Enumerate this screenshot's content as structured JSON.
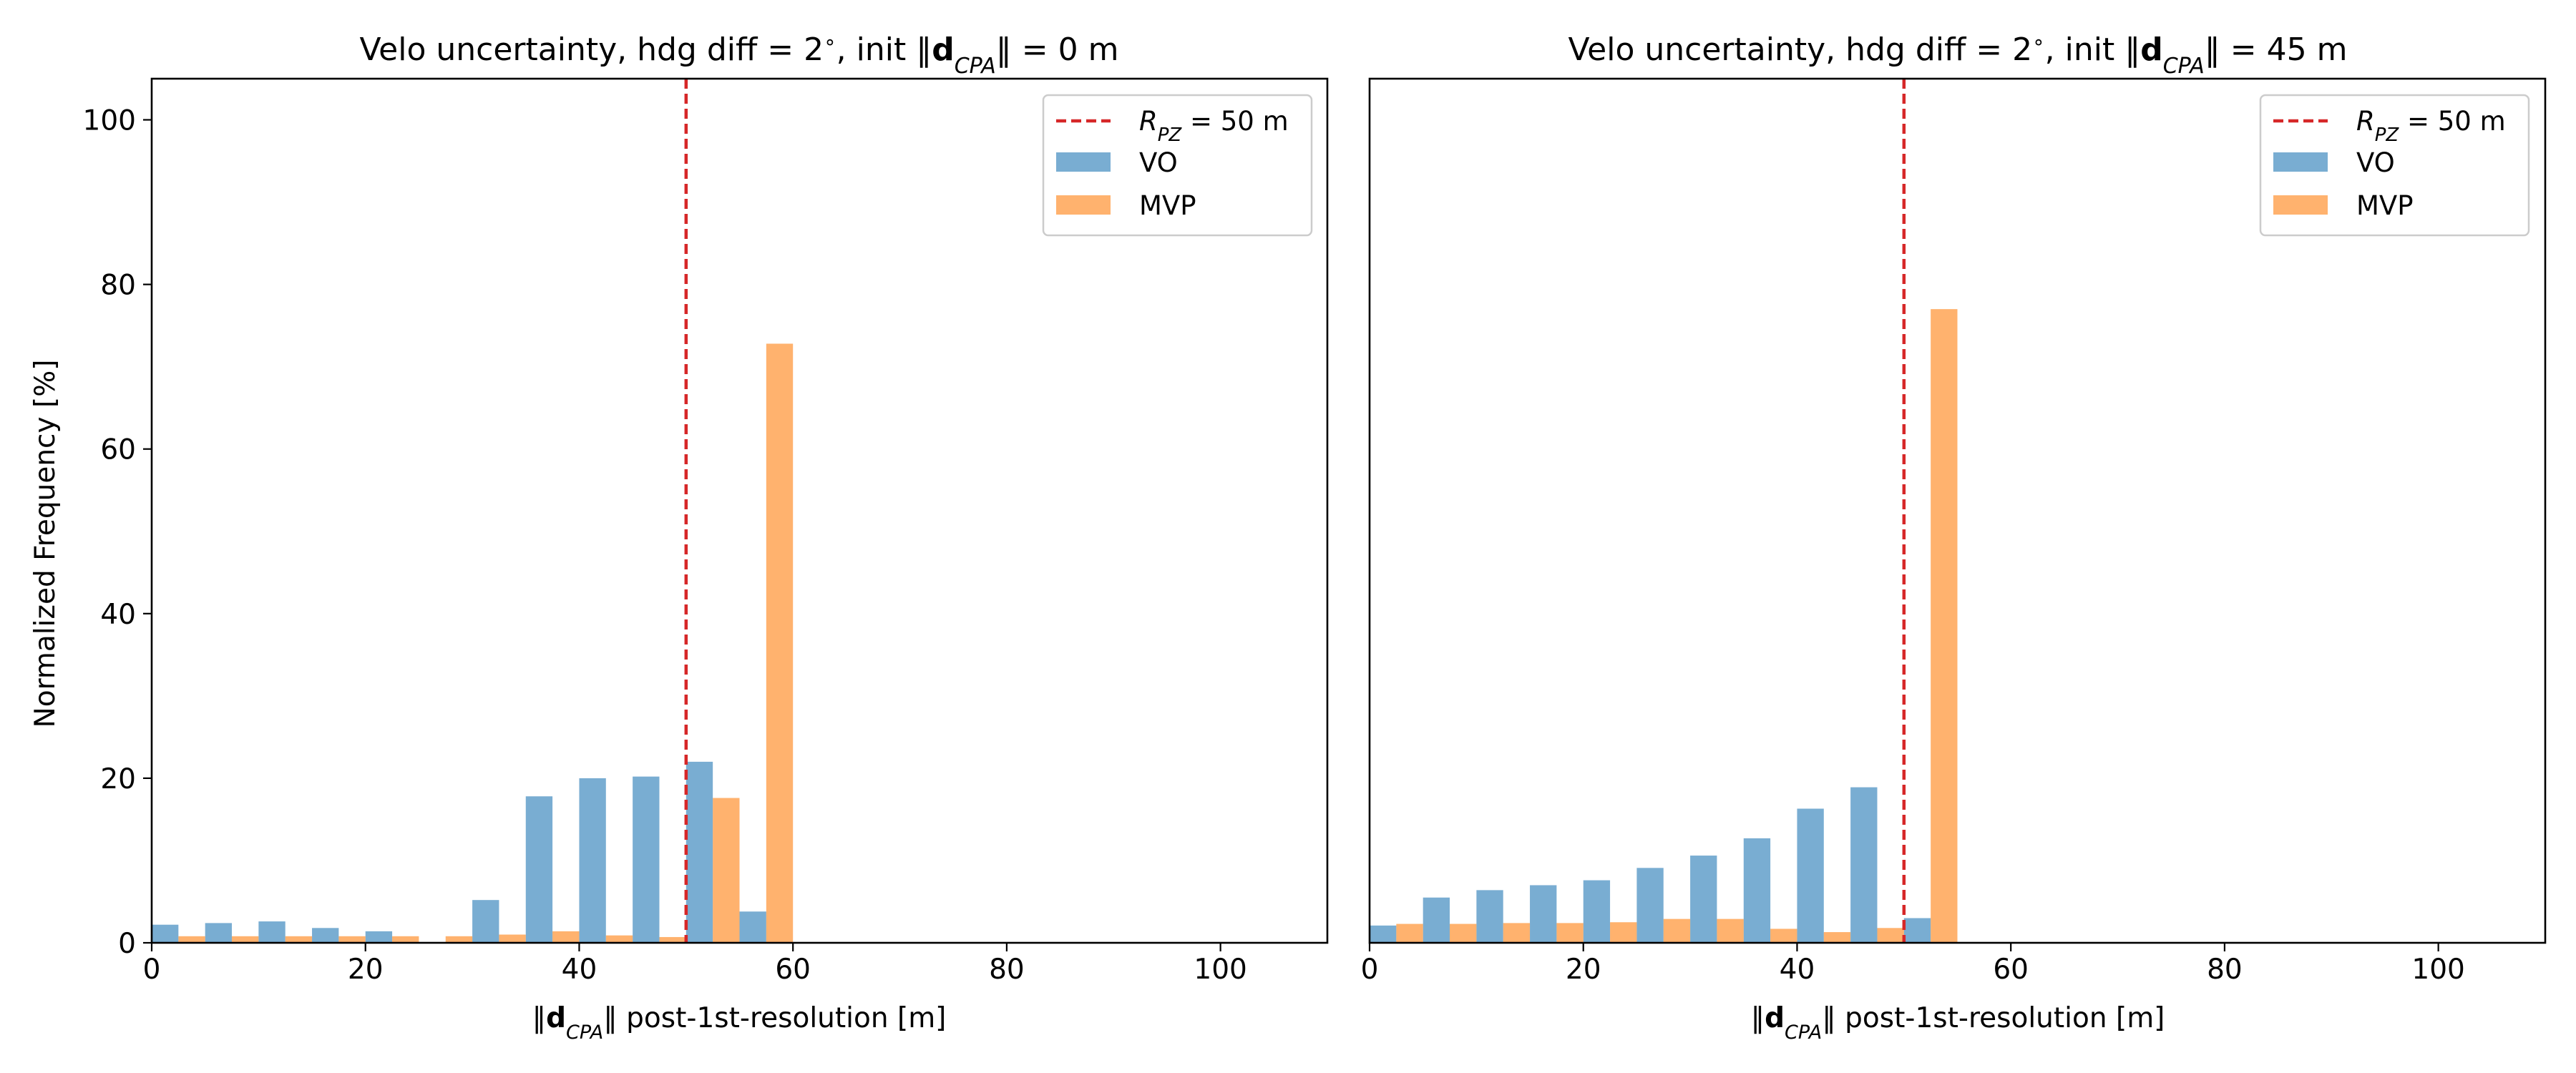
{
  "figure": {
    "ylabel": "Normalized Frequency [%]"
  },
  "colors": {
    "vo": "#1f77b4",
    "mvp": "#ff7f0e",
    "rpz_line": "#d62728",
    "bar_alpha": 0.6
  },
  "chart_data": [
    {
      "type": "bar",
      "title": "Velo uncertainty, hdg diff = 2°, init ‖d_CPA‖ = 0 m",
      "title_prefix": "Velo uncertainty, hdg diff = 2",
      "title_middle": ", init ‖",
      "title_suffix": "‖ = 0 m",
      "xlabel_suffix": "‖ post-1st-resolution [m]",
      "xlim": [
        0,
        110
      ],
      "ylim": [
        0,
        105
      ],
      "xticks": [
        0,
        20,
        40,
        60,
        80,
        100
      ],
      "yticks": [
        0,
        20,
        40,
        60,
        80,
        100
      ],
      "grid": false,
      "legend_position": "top-right",
      "bin_width": 5,
      "bin_starts": [
        0,
        5,
        10,
        15,
        20,
        25,
        30,
        35,
        40,
        45,
        50,
        55
      ],
      "series": [
        {
          "name": "VO",
          "values": [
            2.2,
            2.4,
            2.6,
            1.8,
            1.4,
            0,
            5.2,
            17.8,
            20.0,
            20.2,
            22.0,
            3.8
          ]
        },
        {
          "name": "MVP",
          "values": [
            0.8,
            0.8,
            0.8,
            0.8,
            0.8,
            0.8,
            1.0,
            1.4,
            0.9,
            0.7,
            17.6,
            72.8
          ]
        }
      ],
      "vline": {
        "x": 50,
        "label_main": "R",
        "label_sub": "PZ",
        "label_rest": " = 50 m"
      }
    },
    {
      "type": "bar",
      "title": "Velo uncertainty, hdg diff = 2°, init ‖d_CPA‖ = 45 m",
      "title_prefix": "Velo uncertainty, hdg diff = 2",
      "title_middle": ", init ‖",
      "title_suffix": "‖ = 45 m",
      "xlabel_suffix": "‖ post-1st-resolution [m]",
      "xlim": [
        0,
        110
      ],
      "ylim": [
        0,
        105
      ],
      "xticks": [
        0,
        20,
        40,
        60,
        80,
        100
      ],
      "yticks": [],
      "grid": false,
      "legend_position": "top-right",
      "bin_width": 5,
      "bin_starts": [
        0,
        5,
        10,
        15,
        20,
        25,
        30,
        35,
        40,
        45,
        50
      ],
      "series": [
        {
          "name": "VO",
          "values": [
            2.1,
            5.5,
            6.4,
            7.0,
            7.6,
            9.1,
            10.6,
            12.7,
            16.3,
            18.9,
            3.0
          ]
        },
        {
          "name": "MVP",
          "values": [
            2.3,
            2.3,
            2.4,
            2.4,
            2.5,
            2.9,
            2.9,
            1.7,
            1.3,
            1.8,
            77.0
          ]
        }
      ],
      "vline": {
        "x": 50,
        "label_main": "R",
        "label_sub": "PZ",
        "label_rest": " = 50 m"
      }
    }
  ]
}
